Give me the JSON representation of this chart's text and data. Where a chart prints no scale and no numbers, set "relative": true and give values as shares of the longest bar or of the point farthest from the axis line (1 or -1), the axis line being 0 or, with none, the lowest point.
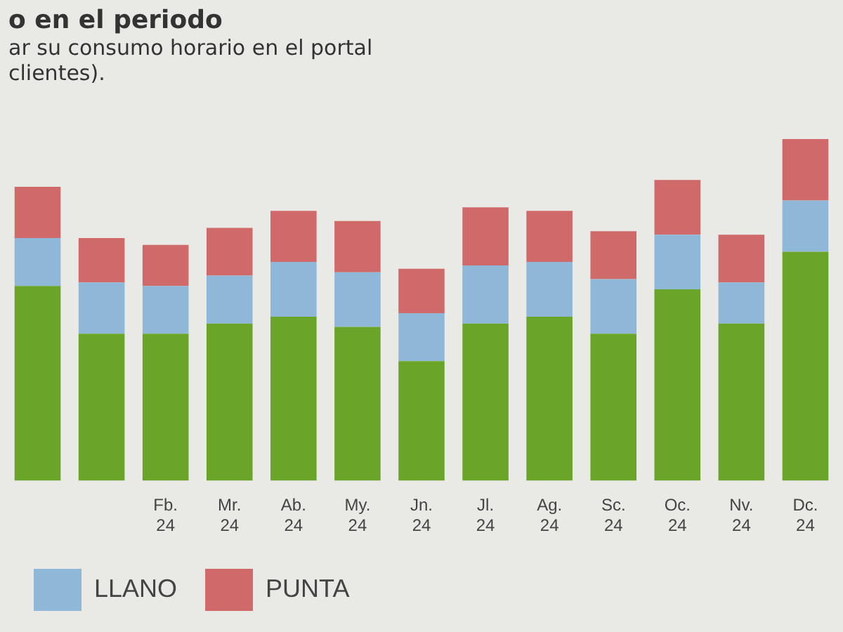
{
  "chart_data": {
    "type": "bar",
    "title": "o en el periodo",
    "annotations": [
      "ar su consumo horario en el portal",
      "clientes)."
    ],
    "categories": [
      null,
      null,
      "Fb. 24",
      "Mr. 24",
      "Ab. 24",
      "My. 24",
      "Jn. 24",
      "Jl. 24",
      "Ag. 24",
      "Sc. 24",
      "Oc. 24",
      "Nv. 24",
      "Dc. 24"
    ],
    "stacked": true,
    "relative": true,
    "legend": "bottom left",
    "series": [
      {
        "color": "#6aa52a",
        "values": [
          0.57,
          0.43,
          0.43,
          0.46,
          0.48,
          0.45,
          0.35,
          0.46,
          0.48,
          0.43,
          0.56,
          0.46,
          0.67
        ]
      },
      {
        "name": "LLANO",
        "color": "#8fb8d8",
        "values": [
          0.14,
          0.15,
          0.14,
          0.14,
          0.16,
          0.16,
          0.14,
          0.17,
          0.16,
          0.16,
          0.16,
          0.12,
          0.15
        ]
      },
      {
        "name": "PUNTA",
        "color": "#d06a6a",
        "values": [
          0.15,
          0.13,
          0.12,
          0.14,
          0.15,
          0.15,
          0.13,
          0.17,
          0.15,
          0.14,
          0.16,
          0.14,
          0.18
        ]
      }
    ]
  }
}
